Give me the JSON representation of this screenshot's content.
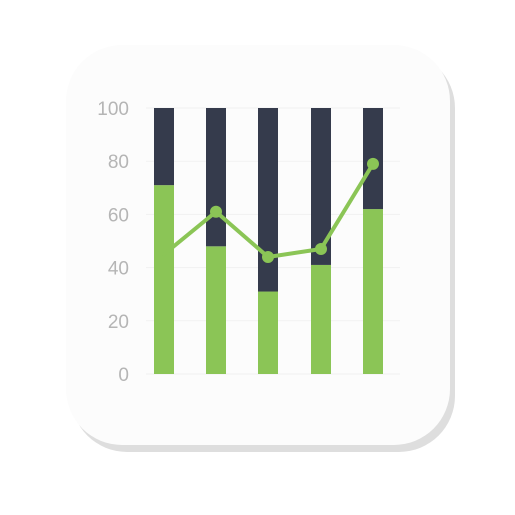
{
  "chart_data": {
    "type": "bar",
    "stacked": true,
    "categories": [
      "",
      "",
      "",
      "",
      ""
    ],
    "series": [
      {
        "values": [
          71,
          48,
          31,
          41,
          62
        ],
        "color": "#8bc556",
        "kind": "bar"
      },
      {
        "values": [
          29,
          52,
          69,
          59,
          38
        ],
        "color": "#353b4c",
        "kind": "bar"
      },
      {
        "values": [
          45,
          61,
          44,
          47,
          79
        ],
        "color": "#8bc556",
        "kind": "line"
      }
    ],
    "ylim": [
      0,
      100
    ],
    "yticks": [
      "0",
      "20",
      "40",
      "60",
      "80",
      "100"
    ],
    "grid": true,
    "title": "",
    "xlabel": "",
    "ylabel": ""
  }
}
